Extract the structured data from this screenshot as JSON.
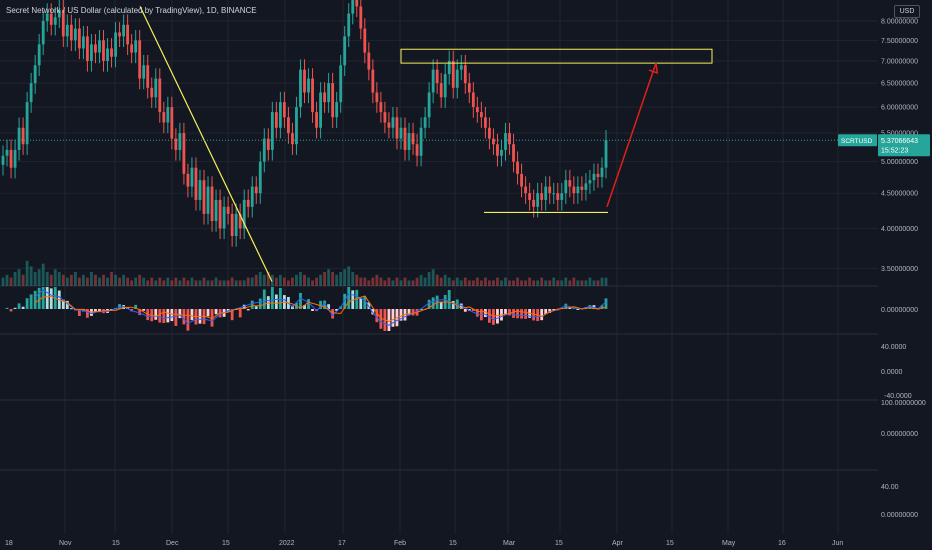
{
  "header": {
    "title": "Secret Network / US Dollar (calculated by TradingView), 1D, BINANCE",
    "currency": "USD"
  },
  "price_tag": {
    "symbol": "SCRTUSD",
    "price": "5.37066643",
    "countdown": "15:52:23",
    "color": "#26a69a"
  },
  "colors": {
    "background": "#131722",
    "up": "#26a69a",
    "down": "#ef5350",
    "grid": "#1f2430",
    "text": "#b2b5be",
    "annotation_yellow": "#f5f05a",
    "annotation_red": "#e0201a"
  },
  "chart_data": {
    "type": "candlestick",
    "title": "Secret Network / US Dollar (calculated by TradingView), 1D, BINANCE",
    "x_ticks": [
      "18",
      "Nov",
      "15",
      "Dec",
      "15",
      "2022",
      "17",
      "Feb",
      "15",
      "Mar",
      "15",
      "Apr",
      "15",
      "May",
      "16",
      "Jun"
    ],
    "price_axis": {
      "scale": "log",
      "ticks": [
        "8.00000000",
        "7.50000000",
        "7.00000000",
        "6.50000000",
        "6.00000000",
        "5.50000000",
        "5.00000000",
        "4.50000000",
        "4.00000000",
        "3.50000000"
      ],
      "range": [
        3.3,
        8.3
      ]
    },
    "pane_ticks": {
      "macd": [
        "0.00000000"
      ],
      "rsi": [
        "40.0000",
        "0.0000",
        "-40.0000"
      ],
      "pane3": [
        "100.00000000",
        "0.00000000"
      ],
      "pane4": [
        "40.00",
        "0.00000000"
      ]
    },
    "candles_close": [
      5.1,
      5.2,
      4.9,
      5.2,
      5.6,
      5.3,
      6.1,
      6.5,
      6.9,
      7.4,
      8.0,
      8.2,
      7.9,
      8.1,
      8.3,
      7.6,
      7.9,
      7.5,
      7.8,
      7.3,
      7.6,
      7.0,
      7.4,
      7.2,
      7.5,
      7.0,
      7.3,
      7.1,
      7.7,
      7.6,
      7.9,
      7.4,
      7.2,
      7.5,
      6.6,
      6.9,
      6.4,
      6.2,
      6.6,
      5.9,
      5.7,
      6.0,
      5.4,
      5.2,
      5.5,
      4.8,
      4.6,
      4.9,
      4.4,
      4.7,
      4.2,
      4.6,
      4.1,
      4.4,
      4.0,
      4.3,
      4.2,
      3.9,
      4.2,
      4.0,
      4.4,
      4.3,
      4.6,
      4.5,
      5.0,
      5.4,
      5.2,
      5.9,
      5.6,
      6.1,
      5.8,
      5.5,
      5.3,
      6.0,
      6.8,
      6.3,
      6.6,
      5.9,
      5.6,
      6.3,
      6.1,
      6.5,
      5.8,
      6.1,
      6.9,
      7.6,
      8.2,
      8.6,
      8.4,
      7.8,
      7.2,
      6.8,
      6.3,
      6.1,
      5.9,
      5.7,
      5.6,
      5.8,
      5.4,
      5.6,
      5.2,
      5.5,
      5.3,
      5.1,
      5.6,
      5.8,
      6.3,
      6.8,
      6.5,
      6.2,
      6.7,
      7.0,
      6.4,
      6.8,
      6.9,
      6.5,
      6.3,
      6.0,
      5.9,
      5.8,
      5.6,
      5.4,
      5.3,
      5.1,
      5.2,
      5.5,
      5.3,
      5.0,
      4.8,
      4.6,
      4.5,
      4.4,
      4.3,
      4.5,
      4.4,
      4.6,
      4.5,
      4.5,
      4.4,
      4.5,
      4.7,
      4.6,
      4.5,
      4.6,
      4.55,
      4.65,
      4.7,
      4.8,
      4.75,
      4.9,
      5.37
    ],
    "volume_relative": [
      0.3,
      0.4,
      0.3,
      0.5,
      0.6,
      0.4,
      0.9,
      0.7,
      0.5,
      0.6,
      0.8,
      0.5,
      0.4,
      0.6,
      0.5,
      0.4,
      0.3,
      0.4,
      0.5,
      0.3,
      0.4,
      0.3,
      0.5,
      0.4,
      0.3,
      0.4,
      0.3,
      0.5,
      0.4,
      0.3,
      0.4,
      0.3,
      0.2,
      0.3,
      0.4,
      0.3,
      0.2,
      0.3,
      0.2,
      0.3,
      0.2,
      0.3,
      0.2,
      0.3,
      0.2,
      0.3,
      0.2,
      0.3,
      0.2,
      0.2,
      0.3,
      0.2,
      0.2,
      0.3,
      0.2,
      0.2,
      0.2,
      0.3,
      0.2,
      0.2,
      0.2,
      0.3,
      0.3,
      0.4,
      0.5,
      0.4,
      0.5,
      0.4,
      0.3,
      0.4,
      0.3,
      0.2,
      0.3,
      0.4,
      0.5,
      0.4,
      0.3,
      0.2,
      0.3,
      0.4,
      0.5,
      0.6,
      0.5,
      0.4,
      0.5,
      0.6,
      0.7,
      0.5,
      0.4,
      0.3,
      0.3,
      0.2,
      0.3,
      0.4,
      0.3,
      0.2,
      0.3,
      0.2,
      0.3,
      0.2,
      0.3,
      0.2,
      0.2,
      0.3,
      0.4,
      0.3,
      0.5,
      0.6,
      0.4,
      0.3,
      0.4,
      0.3,
      0.2,
      0.3,
      0.2,
      0.3,
      0.2,
      0.2,
      0.3,
      0.2,
      0.3,
      0.2,
      0.2,
      0.3,
      0.2,
      0.3,
      0.2,
      0.2,
      0.3,
      0.2,
      0.2,
      0.3,
      0.2,
      0.2,
      0.3,
      0.2,
      0.2,
      0.3,
      0.2,
      0.2,
      0.3,
      0.2,
      0.3,
      0.2,
      0.2,
      0.2,
      0.3,
      0.2,
      0.2,
      0.3,
      0.3
    ],
    "annotations": {
      "resistance_zone": {
        "price_low": 6.95,
        "price_high": 7.28
      },
      "support_line": {
        "price": 4.22
      },
      "downtrend_line": {
        "from_price": 8.4,
        "to_price": 3.35
      },
      "target_arrow": {
        "from_price": 4.3,
        "to_price": 7.0
      }
    }
  }
}
